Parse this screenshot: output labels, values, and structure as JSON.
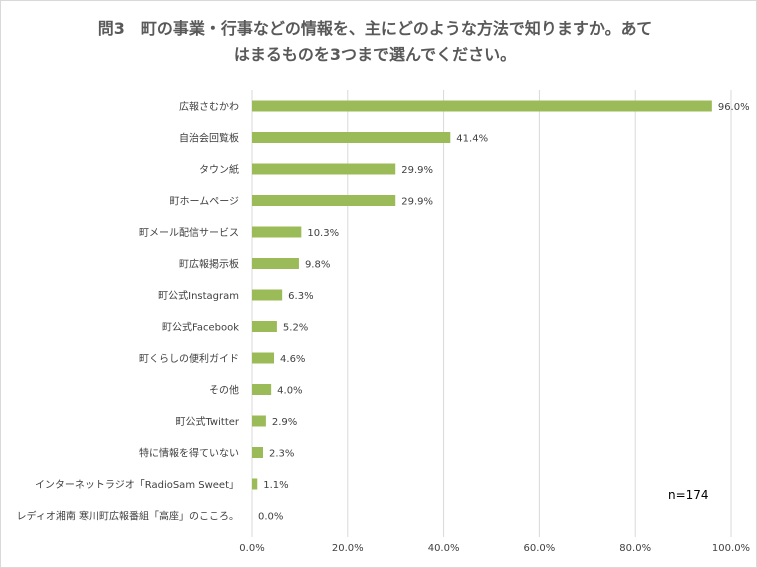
{
  "title_lines": [
    "問3　町の事業・行事などの情報を、主にどのような方法で知りますか。あて",
    "はまるものを3つまで選んでください。"
  ],
  "sample_note": "n=174",
  "colors": {
    "bar": "#9bbb59",
    "grid": "#d9d9d9",
    "text": "#404040"
  },
  "chart_data": {
    "type": "bar",
    "orientation": "horizontal",
    "categories": [
      "広報さむかわ",
      "自治会回覧板",
      "タウン紙",
      "町ホームページ",
      "町メール配信サービス",
      "町広報掲示板",
      "町公式Instagram",
      "町公式Facebook",
      "町くらしの便利ガイド",
      "その他",
      "町公式Twitter",
      "特に情報を得ていない",
      "インターネットラジオ「RadioSam Sweet」",
      "レディオ湘南 寒川町広報番組「高座」のこころ。"
    ],
    "values": [
      96.0,
      41.4,
      29.9,
      29.9,
      10.3,
      9.8,
      6.3,
      5.2,
      4.6,
      4.0,
      2.9,
      2.3,
      1.1,
      0.0
    ],
    "value_labels": [
      "96.0%",
      "41.4%",
      "29.9%",
      "29.9%",
      "10.3%",
      "9.8%",
      "6.3%",
      "5.2%",
      "4.6%",
      "4.0%",
      "2.9%",
      "2.3%",
      "1.1%",
      "0.0%"
    ],
    "xlim": [
      0,
      100
    ],
    "xticks": [
      0,
      20,
      40,
      60,
      80,
      100
    ],
    "xtick_labels": [
      "0.0%",
      "20.0%",
      "40.0%",
      "60.0%",
      "80.0%",
      "100.0%"
    ],
    "grid": true,
    "legend": "none"
  }
}
